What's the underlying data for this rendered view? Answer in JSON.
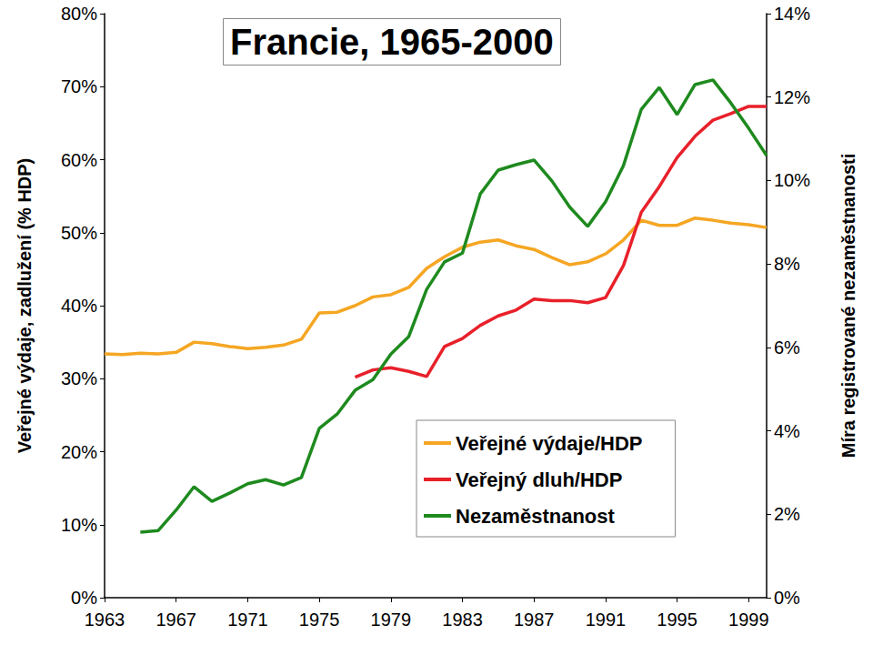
{
  "chart_data": {
    "type": "line",
    "title": "Francie, 1965-2000",
    "y_label": "Veřejné výdaje, zadlužení (% HDP)",
    "y2_label": "Míra registrované nezaměstnanosti",
    "x": [
      1963,
      1964,
      1965,
      1966,
      1967,
      1968,
      1969,
      1970,
      1971,
      1972,
      1973,
      1974,
      1975,
      1976,
      1977,
      1978,
      1979,
      1980,
      1981,
      1982,
      1983,
      1984,
      1985,
      1986,
      1987,
      1988,
      1989,
      1990,
      1991,
      1992,
      1993,
      1994,
      1995,
      1996,
      1997,
      1998,
      1999,
      2000
    ],
    "xlim": [
      1963,
      2000
    ],
    "xticks": [
      1963,
      1967,
      1971,
      1975,
      1979,
      1983,
      1987,
      1991,
      1995,
      1999
    ],
    "ylim": [
      0,
      80
    ],
    "yticks": [
      {
        "value": 0,
        "label": "0%"
      },
      {
        "value": 10,
        "label": "10%"
      },
      {
        "value": 20,
        "label": "20%"
      },
      {
        "value": 30,
        "label": "30%"
      },
      {
        "value": 40,
        "label": "40%"
      },
      {
        "value": 50,
        "label": "50%"
      },
      {
        "value": 60,
        "label": "60%"
      },
      {
        "value": 70,
        "label": "70%"
      },
      {
        "value": 80,
        "label": "80%"
      }
    ],
    "y2lim": [
      0,
      14
    ],
    "y2ticks": [
      {
        "value": 0,
        "label": "0%"
      },
      {
        "value": 2,
        "label": "2%"
      },
      {
        "value": 4,
        "label": "4%"
      },
      {
        "value": 6,
        "label": "6%"
      },
      {
        "value": 8,
        "label": "8%"
      },
      {
        "value": 10,
        "label": "10%"
      },
      {
        "value": 12,
        "label": "12%"
      },
      {
        "value": 14,
        "label": "14%"
      }
    ],
    "grid": false,
    "legend": "lower right",
    "series": [
      {
        "name": "Veřejné výdaje/HDP",
        "color": "#f5a623",
        "axis": "y",
        "values": [
          33.4,
          33.3,
          33.5,
          33.4,
          33.6,
          35.0,
          34.8,
          34.4,
          34.1,
          34.3,
          34.6,
          35.4,
          39.0,
          39.1,
          40.0,
          41.2,
          41.5,
          42.5,
          45.1,
          46.7,
          48.0,
          48.7,
          49.0,
          48.2,
          47.7,
          46.6,
          45.6,
          46.0,
          47.1,
          49.0,
          51.7,
          51.0,
          51.0,
          52.0,
          51.7,
          51.3,
          51.1,
          50.7
        ]
      },
      {
        "name": "Veřejný dluh/HDP",
        "color": "#e8202a",
        "axis": "y",
        "values": [
          null,
          null,
          null,
          null,
          null,
          null,
          null,
          null,
          null,
          null,
          null,
          null,
          null,
          null,
          30.2,
          31.2,
          31.5,
          31.0,
          30.3,
          34.4,
          35.5,
          37.3,
          38.6,
          39.4,
          40.9,
          40.7,
          40.7,
          40.4,
          41.1,
          45.5,
          52.8,
          56.3,
          60.3,
          63.2,
          65.4,
          66.3,
          67.3,
          67.3
        ]
      },
      {
        "name": "Nezaměstnanost",
        "color": "#1e8a1e",
        "axis": "y2",
        "values": [
          null,
          null,
          1.57,
          1.61,
          2.1,
          2.66,
          2.31,
          2.51,
          2.73,
          2.83,
          2.7,
          2.88,
          4.06,
          4.4,
          4.97,
          5.23,
          5.84,
          6.26,
          7.39,
          8.05,
          8.26,
          9.68,
          10.25,
          10.38,
          10.49,
          9.99,
          9.36,
          8.9,
          9.49,
          10.36,
          11.71,
          12.23,
          11.58,
          12.3,
          12.41,
          11.86,
          11.25,
          10.6
        ]
      }
    ]
  }
}
